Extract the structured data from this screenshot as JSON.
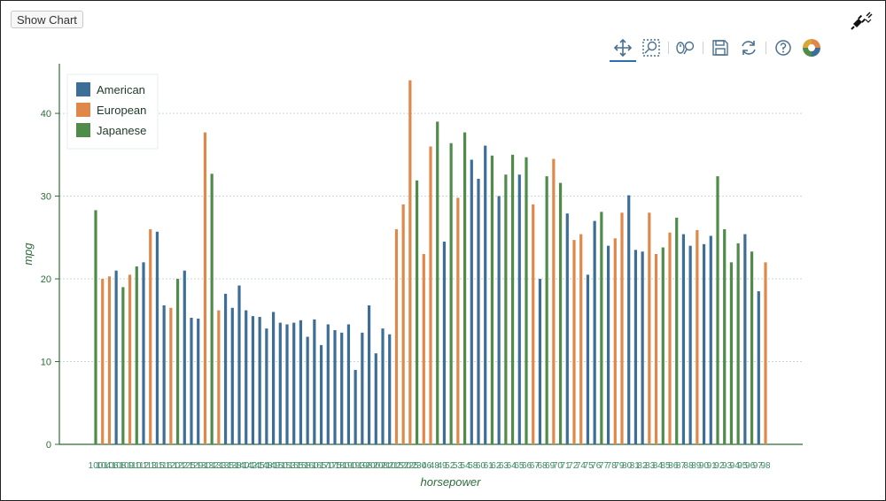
{
  "controls": {
    "show_chart_label": "Show Chart"
  },
  "toolbar": {
    "tools": [
      "pan-icon",
      "box-zoom-icon",
      "wheel-zoom-icon",
      "save-icon",
      "reset-icon",
      "help-icon",
      "bokeh-logo-icon"
    ]
  },
  "chart_data": {
    "type": "bar",
    "xlabel": "horsepower",
    "ylabel": "mpg",
    "ylim": [
      0,
      46
    ],
    "yticks": [
      0,
      10,
      20,
      30,
      40
    ],
    "grid": "horizontal",
    "legend_position": "top-left",
    "colors": {
      "American": "#3d6e98",
      "European": "#e0884a",
      "Japanese": "#4f8c4a"
    },
    "legend": [
      "American",
      "European",
      "Japanese"
    ],
    "bars": [
      {
        "series": "Japanese",
        "value": 28.3
      },
      {
        "series": "European",
        "value": 20
      },
      {
        "series": "European",
        "value": 20.3
      },
      {
        "series": "American",
        "value": 21
      },
      {
        "series": "Japanese",
        "value": 19
      },
      {
        "series": "European",
        "value": 20.5
      },
      {
        "series": "Japanese",
        "value": 21.5
      },
      {
        "series": "American",
        "value": 22
      },
      {
        "series": "European",
        "value": 26
      },
      {
        "series": "American",
        "value": 25.7
      },
      {
        "series": "American",
        "value": 16.8
      },
      {
        "series": "European",
        "value": 16.5
      },
      {
        "series": "Japanese",
        "value": 20
      },
      {
        "series": "American",
        "value": 21
      },
      {
        "series": "American",
        "value": 15.3
      },
      {
        "series": "American",
        "value": 15.2
      },
      {
        "series": "European",
        "value": 37.7
      },
      {
        "series": "Japanese",
        "value": 32.7
      },
      {
        "series": "European",
        "value": 16.2
      },
      {
        "series": "American",
        "value": 18.2
      },
      {
        "series": "American",
        "value": 16.5
      },
      {
        "series": "American",
        "value": 19.2
      },
      {
        "series": "American",
        "value": 16.2
      },
      {
        "series": "American",
        "value": 15.5
      },
      {
        "series": "American",
        "value": 15.4
      },
      {
        "series": "American",
        "value": 14
      },
      {
        "series": "American",
        "value": 16
      },
      {
        "series": "American",
        "value": 14.7
      },
      {
        "series": "American",
        "value": 14.5
      },
      {
        "series": "American",
        "value": 14.7
      },
      {
        "series": "American",
        "value": 15
      },
      {
        "series": "American",
        "value": 13
      },
      {
        "series": "American",
        "value": 15.1
      },
      {
        "series": "American",
        "value": 12
      },
      {
        "series": "American",
        "value": 14.5
      },
      {
        "series": "American",
        "value": 13.8
      },
      {
        "series": "American",
        "value": 13.5
      },
      {
        "series": "American",
        "value": 14.5
      },
      {
        "series": "American",
        "value": 9
      },
      {
        "series": "American",
        "value": 13.5
      },
      {
        "series": "American",
        "value": 16.8
      },
      {
        "series": "American",
        "value": 11
      },
      {
        "series": "American",
        "value": 14
      },
      {
        "series": "American",
        "value": 13.3
      },
      {
        "series": "European",
        "value": 26
      },
      {
        "series": "European",
        "value": 29
      },
      {
        "series": "European",
        "value": 44
      },
      {
        "series": "Japanese",
        "value": 31.9
      },
      {
        "series": "European",
        "value": 23
      },
      {
        "series": "European",
        "value": 36
      },
      {
        "series": "Japanese",
        "value": 39
      },
      {
        "series": "American",
        "value": 24.5
      },
      {
        "series": "Japanese",
        "value": 36.4
      },
      {
        "series": "European",
        "value": 29.8
      },
      {
        "series": "Japanese",
        "value": 37.7
      },
      {
        "series": "American",
        "value": 34.4
      },
      {
        "series": "American",
        "value": 32.1
      },
      {
        "series": "American",
        "value": 36.1
      },
      {
        "series": "Japanese",
        "value": 34.9
      },
      {
        "series": "American",
        "value": 30
      },
      {
        "series": "Japanese",
        "value": 32.6
      },
      {
        "series": "Japanese",
        "value": 35
      },
      {
        "series": "American",
        "value": 32.6
      },
      {
        "series": "Japanese",
        "value": 34.7
      },
      {
        "series": "European",
        "value": 29
      },
      {
        "series": "American",
        "value": 20
      },
      {
        "series": "Japanese",
        "value": 32.4
      },
      {
        "series": "European",
        "value": 34.5
      },
      {
        "series": "Japanese",
        "value": 31.6
      },
      {
        "series": "American",
        "value": 27.9
      },
      {
        "series": "European",
        "value": 24.7
      },
      {
        "series": "European",
        "value": 25.4
      },
      {
        "series": "American",
        "value": 20.5
      },
      {
        "series": "American",
        "value": 27
      },
      {
        "series": "Japanese",
        "value": 28.1
      },
      {
        "series": "American",
        "value": 24
      },
      {
        "series": "European",
        "value": 24.9
      },
      {
        "series": "European",
        "value": 28
      },
      {
        "series": "American",
        "value": 30.1
      },
      {
        "series": "American",
        "value": 23.5
      },
      {
        "series": "American",
        "value": 23.3
      },
      {
        "series": "European",
        "value": 28
      },
      {
        "series": "European",
        "value": 23
      },
      {
        "series": "Japanese",
        "value": 23.8
      },
      {
        "series": "European",
        "value": 25.6
      },
      {
        "series": "Japanese",
        "value": 27.4
      },
      {
        "series": "American",
        "value": 25.4
      },
      {
        "series": "American",
        "value": 24
      },
      {
        "series": "European",
        "value": 25.9
      },
      {
        "series": "American",
        "value": 24.2
      },
      {
        "series": "American",
        "value": 25.2
      },
      {
        "series": "Japanese",
        "value": 32.4
      },
      {
        "series": "Japanese",
        "value": 26
      },
      {
        "series": "Japanese",
        "value": 22
      },
      {
        "series": "Japanese",
        "value": 24.3
      },
      {
        "series": "American",
        "value": 25.4
      },
      {
        "series": "Japanese",
        "value": 23.3
      },
      {
        "series": "American",
        "value": 18.5
      },
      {
        "series": "European",
        "value": 22
      }
    ],
    "xticks": [
      "100",
      "104",
      "106",
      "108",
      "109",
      "110",
      "112",
      "113",
      "115",
      "116",
      "120",
      "122",
      "125",
      "129",
      "130",
      "132",
      "133",
      "135",
      "138",
      "140",
      "142",
      "145",
      "148",
      "149",
      "150",
      "153",
      "155",
      "158",
      "160",
      "165",
      "170",
      "175",
      "180",
      "190",
      "193",
      "198",
      "200",
      "208",
      "210",
      "215",
      "220",
      "225",
      "230",
      "46",
      "48",
      "49",
      "52",
      "53",
      "54",
      "58",
      "60",
      "61",
      "62",
      "63",
      "64",
      "65",
      "66",
      "67",
      "68",
      "69",
      "70",
      "71",
      "72",
      "74",
      "75",
      "76",
      "77",
      "78",
      "79",
      "80",
      "81",
      "82",
      "83",
      "84",
      "85",
      "86",
      "87",
      "88",
      "89",
      "90",
      "91",
      "92",
      "93",
      "94",
      "95",
      "96",
      "97",
      "98"
    ]
  }
}
